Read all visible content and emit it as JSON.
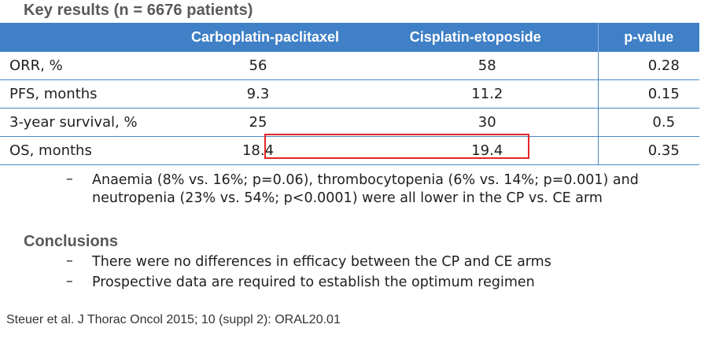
{
  "title": "Key results (n = 6676 patients)",
  "table": {
    "headers": [
      "",
      "Carboplatin-paclitaxel",
      "Cisplatin-etoposide",
      "p-value"
    ],
    "rows": [
      {
        "label": "ORR, %",
        "cp": "56",
        "ce": "58",
        "p": "0.28"
      },
      {
        "label": "PFS, months",
        "cp": "9.3",
        "ce": "11.2",
        "p": "0.15"
      },
      {
        "label": "3-year survival, %",
        "cp": "25",
        "ce": "30",
        "p": "0.5"
      },
      {
        "label": "OS, months",
        "cp": "18.4",
        "ce": "19.4",
        "p": "0.35"
      }
    ]
  },
  "toxicity_bullet": {
    "dash": "–",
    "text": "Anaemia (8% vs. 16%; p=0.06), thrombocytopenia (6% vs. 14%; p=0.001) and neutropenia (23% vs. 54%; p<0.0001) were all lower in the CP vs. CE arm"
  },
  "conclusions": {
    "heading": "Conclusions",
    "items": [
      {
        "dash": "–",
        "text": "There were no differences in efficacy between the CP and CE arms"
      },
      {
        "dash": "–",
        "text": "Prospective data are required to establish the optimum regimen"
      }
    ]
  },
  "citation": "Steuer et al. J Thorac Oncol 2015; 10 (suppl 2): ORAL20.01",
  "colors": {
    "header_bg": "#3f80c6",
    "grid": "#4a86c6",
    "highlight": "#e32626",
    "heading_gray": "#595959"
  }
}
